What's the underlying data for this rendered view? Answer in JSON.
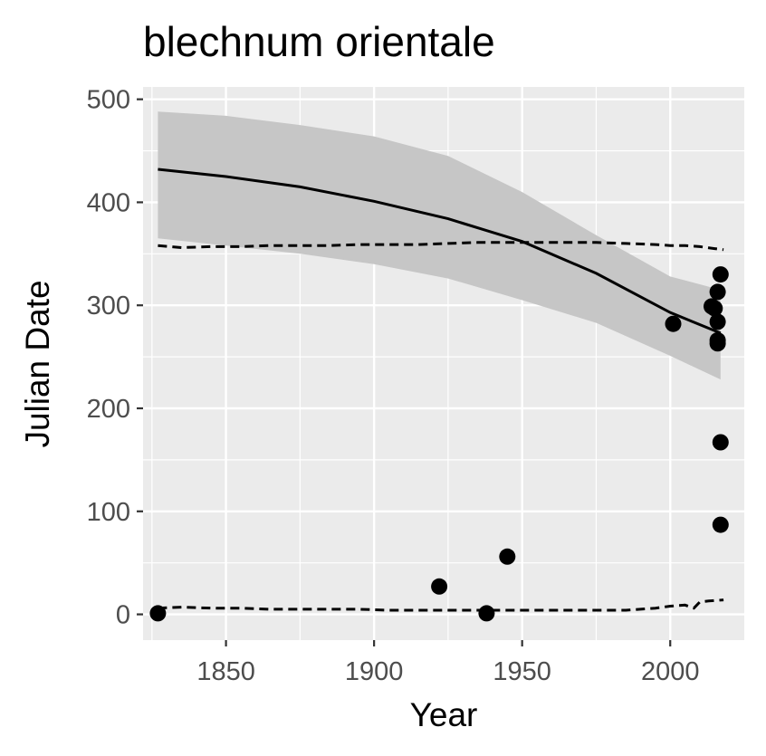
{
  "chart_data": {
    "type": "scatter",
    "title": "blechnum orientale",
    "xlabel": "Year",
    "ylabel": "Julian Date",
    "xlim": [
      1822,
      2025
    ],
    "ylim": [
      -25,
      512
    ],
    "x_ticks": [
      1850,
      1900,
      1950,
      2000
    ],
    "y_ticks": [
      0,
      100,
      200,
      300,
      400,
      500
    ],
    "grid": true,
    "legend": "none",
    "colors": {
      "panel": "#ebebeb",
      "grid": "#ffffff",
      "ribbon": "#c6c6c6",
      "points": "#000000",
      "lines": "#000000"
    },
    "points": [
      {
        "x": 1827,
        "y": 1
      },
      {
        "x": 1922,
        "y": 27
      },
      {
        "x": 1938,
        "y": 1
      },
      {
        "x": 1945,
        "y": 56
      },
      {
        "x": 2001,
        "y": 282
      },
      {
        "x": 2014,
        "y": 299
      },
      {
        "x": 2015,
        "y": 297
      },
      {
        "x": 2016,
        "y": 313
      },
      {
        "x": 2016,
        "y": 284
      },
      {
        "x": 2016,
        "y": 263
      },
      {
        "x": 2016,
        "y": 266
      },
      {
        "x": 2017,
        "y": 330
      },
      {
        "x": 2017,
        "y": 167
      },
      {
        "x": 2017,
        "y": 87
      }
    ],
    "fit_line": {
      "x": [
        1827,
        1850,
        1875,
        1900,
        1925,
        1950,
        1975,
        2000,
        2017
      ],
      "y": [
        432,
        425,
        415,
        401,
        384,
        362,
        331,
        293,
        273
      ]
    },
    "ribbon": {
      "x": [
        1827,
        1850,
        1875,
        1900,
        1925,
        1950,
        1975,
        2000,
        2017
      ],
      "upper": [
        488,
        484,
        475,
        464,
        445,
        410,
        368,
        328,
        315
      ],
      "lower": [
        365,
        358,
        350,
        340,
        326,
        305,
        283,
        251,
        228
      ]
    },
    "dashed_upper": {
      "x": [
        1827,
        1835,
        1845,
        1855,
        1865,
        1875,
        1885,
        1895,
        1905,
        1915,
        1925,
        1935,
        1945,
        1955,
        1965,
        1975,
        1985,
        1995,
        2000,
        2005,
        2010,
        2015,
        2018
      ],
      "y": [
        358,
        356,
        357,
        357,
        358,
        358,
        358,
        359,
        359,
        359,
        360,
        361,
        361,
        361,
        361,
        361,
        360,
        359,
        358,
        358,
        357,
        355,
        354
      ]
    },
    "dashed_lower": {
      "x": [
        1827,
        1835,
        1845,
        1855,
        1865,
        1875,
        1885,
        1895,
        1905,
        1915,
        1925,
        1935,
        1945,
        1955,
        1965,
        1975,
        1985,
        1995,
        2000,
        2005,
        2008,
        2010,
        2013,
        2018
      ],
      "y": [
        6,
        7,
        6,
        6,
        5,
        5,
        5,
        5,
        4,
        4,
        4,
        4,
        4,
        4,
        4,
        4,
        4,
        6,
        8,
        9,
        6,
        12,
        13,
        14
      ]
    }
  }
}
